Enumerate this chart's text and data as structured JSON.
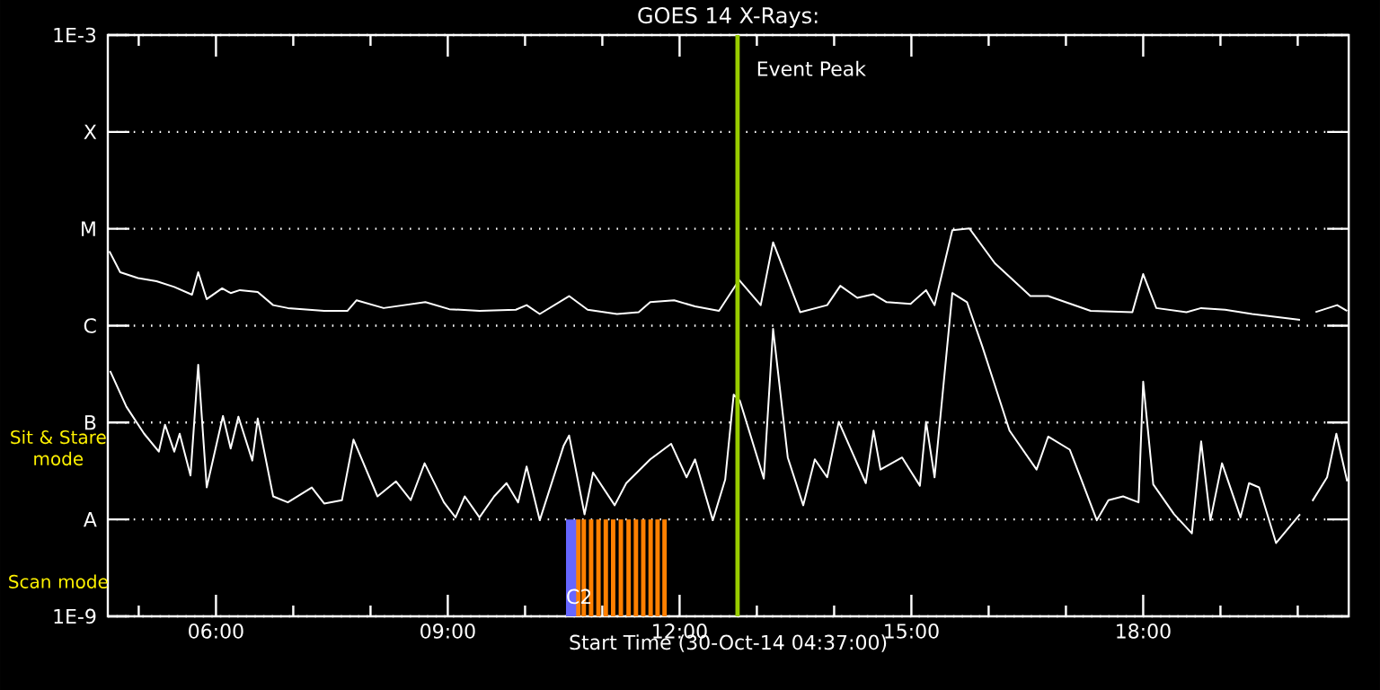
{
  "chart_data": {
    "type": "line",
    "title": "GOES 14 X-Rays:",
    "xlabel": "Start Time (30-Oct-14 04:37:00)",
    "log": "y",
    "grid": "y",
    "line_style": "solid",
    "xlim": [
      4.6,
      20.66
    ],
    "ylim": [
      1e-09,
      0.001
    ],
    "xticks": [
      {
        "value": 5,
        "label": null
      },
      {
        "value": 6,
        "label": "06:00"
      },
      {
        "value": 7,
        "label": null
      },
      {
        "value": 8,
        "label": null
      },
      {
        "value": 9,
        "label": "09:00"
      },
      {
        "value": 10,
        "label": null
      },
      {
        "value": 11,
        "label": null
      },
      {
        "value": 12,
        "label": "12:00"
      },
      {
        "value": 13,
        "label": null
      },
      {
        "value": 14,
        "label": null
      },
      {
        "value": 15,
        "label": "15:00"
      },
      {
        "value": 16,
        "label": null
      },
      {
        "value": 17,
        "label": null
      },
      {
        "value": 18,
        "label": "18:00"
      },
      {
        "value": 19,
        "label": null
      },
      {
        "value": 20,
        "label": null
      }
    ],
    "yticks": [
      {
        "value": 1e-09,
        "label": "1E-9"
      },
      {
        "value": 1e-08,
        "label": "A"
      },
      {
        "value": 1e-07,
        "label": "B"
      },
      {
        "value": 1e-06,
        "label": "C"
      },
      {
        "value": 1e-05,
        "label": "M"
      },
      {
        "value": 0.0001,
        "label": "X"
      },
      {
        "value": 0.001,
        "label": "1E-3"
      }
    ],
    "ref_lines": [
      {
        "axis": "x",
        "value": 12.75,
        "label": "Event Peak",
        "color": "#99cc00"
      }
    ],
    "annotations": [
      "Sit & Stare mode",
      "Scan mode",
      {
        "text": "C2",
        "x": 10.7,
        "y": 1.6e-09
      }
    ],
    "series": [
      {
        "color": "#ffffff",
        "x": [
          4.62,
          4.76,
          4.99,
          5.23,
          5.46,
          5.69,
          5.77,
          5.88,
          6.08,
          6.19,
          6.31,
          6.54,
          6.74,
          6.93,
          7.4,
          7.7,
          7.82,
          8.17,
          8.71,
          9.02,
          9.41,
          9.88,
          10.02,
          10.19,
          10.57,
          10.81,
          11.19,
          11.47,
          11.62,
          11.93,
          12.2,
          12.51,
          12.77,
          13.05,
          13.21,
          13.56,
          13.91,
          14.08,
          14.3,
          14.51,
          14.68,
          14.99,
          15.19,
          15.3,
          15.53,
          15.75,
          16.08,
          16.54,
          16.77,
          17.32,
          17.86,
          18.0,
          18.17,
          18.56,
          18.75,
          19.06,
          19.41,
          20.03,
          20.1,
          20.23,
          20.51,
          20.64
        ],
        "values": [
          5.87e-06,
          3.56e-06,
          3.1e-06,
          2.88e-06,
          2.51e-06,
          2.09e-06,
          3.56e-06,
          1.88e-06,
          2.43e-06,
          2.17e-06,
          2.33e-06,
          2.23e-06,
          1.63e-06,
          1.52e-06,
          1.42e-06,
          1.42e-06,
          1.83e-06,
          1.52e-06,
          1.75e-06,
          1.48e-06,
          1.42e-06,
          1.46e-06,
          1.63e-06,
          1.32e-06,
          2.02e-06,
          1.46e-06,
          1.32e-06,
          1.38e-06,
          1.75e-06,
          1.83e-06,
          1.58e-06,
          1.42e-06,
          2.96e-06,
          1.63e-06,
          7.26e-06,
          1.38e-06,
          1.63e-06,
          2.58e-06,
          1.94e-06,
          2.11e-06,
          1.75e-06,
          1.68e-06,
          2.33e-06,
          1.63e-06,
          9.66e-06,
          1.01e-05,
          4.41e-06,
          2.02e-06,
          2.02e-06,
          1.42e-06,
          1.38e-06,
          3.41e-06,
          1.52e-06,
          1.38e-06,
          1.52e-06,
          1.46e-06,
          1.32e-06,
          1.15e-06,
          null,
          1.38e-06,
          1.63e-06,
          1.42e-06
        ]
      },
      {
        "color": "#ffffff",
        "x": [
          4.63,
          4.84,
          5.07,
          5.26,
          5.34,
          5.46,
          5.53,
          5.67,
          5.77,
          5.88,
          6.09,
          6.19,
          6.29,
          6.47,
          6.54,
          6.74,
          6.93,
          7.24,
          7.4,
          7.63,
          7.78,
          8.09,
          8.33,
          8.52,
          8.7,
          8.95,
          9.1,
          9.22,
          9.41,
          9.6,
          9.76,
          9.91,
          10.02,
          10.19,
          10.5,
          10.57,
          10.77,
          10.88,
          11.16,
          11.31,
          11.62,
          11.89,
          12.09,
          12.2,
          12.43,
          12.59,
          12.7,
          12.78,
          13.09,
          13.21,
          13.4,
          13.6,
          13.75,
          13.91,
          14.06,
          14.41,
          14.51,
          14.6,
          14.88,
          15.11,
          15.19,
          15.3,
          15.53,
          15.72,
          15.92,
          16.07,
          16.27,
          16.62,
          16.77,
          17.05,
          17.2,
          17.4,
          17.55,
          17.74,
          17.94,
          18.0,
          18.13,
          18.4,
          18.63,
          18.75,
          18.87,
          19.02,
          19.26,
          19.37,
          19.5,
          19.72,
          20.03,
          20.1,
          20.19,
          20.38,
          20.5,
          20.64
        ],
        "values": [
          3.41e-07,
          1.46e-07,
          7.67e-08,
          5.01e-08,
          9.51e-08,
          5.01e-08,
          7.67e-08,
          2.84e-08,
          3.94e-07,
          2.14e-08,
          1.17e-07,
          5.38e-08,
          1.15e-07,
          4.05e-08,
          1.1e-07,
          1.73e-08,
          1.5e-08,
          2.14e-08,
          1.46e-08,
          1.58e-08,
          6.67e-08,
          1.73e-08,
          2.47e-08,
          1.58e-08,
          3.8e-08,
          1.5e-08,
          1.05e-08,
          1.73e-08,
          1.05e-08,
          1.73e-08,
          2.37e-08,
          1.5e-08,
          3.52e-08,
          9.8e-09,
          5.79e-08,
          7.36e-08,
          1.13e-08,
          3.05e-08,
          1.4e-08,
          2.37e-08,
          4.17e-08,
          6.04e-08,
          2.72e-08,
          4.17e-08,
          9.8e-09,
          2.58e-08,
          1.94e-07,
          1.68e-07,
          2.64e-08,
          9.27e-07,
          4.36e-08,
          1.4e-08,
          4.17e-08,
          2.72e-08,
          1.02e-07,
          2.37e-08,
          8.26e-08,
          3.27e-08,
          4.36e-08,
          2.23e-08,
          1.02e-07,
          2.72e-08,
          2.17e-06,
          1.75e-06,
          6.04e-07,
          2.58e-07,
          8.26e-08,
          3.27e-08,
          7.16e-08,
          5.25e-08,
          2.58e-08,
          9.8e-09,
          1.58e-08,
          1.73e-08,
          1.5e-08,
          2.64e-07,
          2.3e-08,
          1.13e-08,
          7.18e-09,
          6.4e-08,
          9.8e-09,
          3.8e-08,
          1.05e-08,
          2.37e-08,
          2.14e-08,
          5.7e-09,
          1.13e-08,
          null,
          1.55e-08,
          2.72e-08,
          7.67e-08,
          2.47e-08
        ]
      },
      {
        "type": "bar",
        "color": "#6666ff",
        "x": [
          10.6
        ],
        "values": [
          1e-08
        ]
      },
      {
        "type": "bar",
        "color": "#ff8000",
        "x": [
          10.69,
          10.76,
          10.855,
          10.95,
          11.045,
          11.14,
          11.24,
          11.34,
          11.435,
          11.53,
          11.625,
          11.715,
          11.805
        ],
        "values": [
          1e-08,
          1e-08,
          1e-08,
          1e-08,
          1e-08,
          1e-08,
          1e-08,
          1e-08,
          1e-08,
          1e-08,
          1e-08,
          1e-08,
          1e-08
        ]
      }
    ]
  }
}
